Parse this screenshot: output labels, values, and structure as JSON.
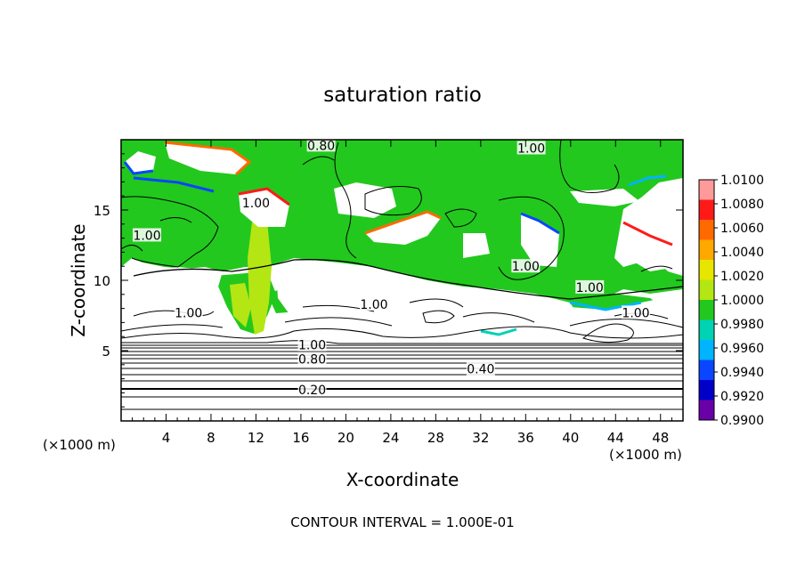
{
  "chart_data": {
    "type": "heatmap",
    "title": "saturation ratio",
    "xlabel": "X-coordinate",
    "ylabel": "Z-coordinate",
    "x_unit_label": "(×1000 m)",
    "x_unit_label_right": "(×1000 m)",
    "footer": "CONTOUR INTERVAL = 1.000E-01",
    "xlim": [
      0,
      50
    ],
    "ylim": [
      0,
      20
    ],
    "x_ticks": [
      4,
      8,
      12,
      16,
      20,
      24,
      28,
      32,
      36,
      40,
      44,
      48
    ],
    "y_ticks": [
      5,
      10,
      15
    ],
    "colorbar": {
      "min": 0.99,
      "max": 1.01,
      "labels": [
        "1.0100",
        "1.0080",
        "1.0060",
        "1.0040",
        "1.0020",
        "1.0000",
        "0.9980",
        "0.9960",
        "0.9940",
        "0.9920",
        "0.9900"
      ],
      "colors": [
        "#ff9a9a",
        "#ff1a1a",
        "#ff6a00",
        "#ffa800",
        "#e6e600",
        "#b4e614",
        "#22c81e",
        "#00d2b4",
        "#00b4ff",
        "#0a46ff",
        "#0000c8",
        "#6a00a8"
      ]
    },
    "contour_labels": [
      {
        "text": "0.80",
        "x": 17.8,
        "y": 19.6
      },
      {
        "text": "1.00",
        "x": 36.5,
        "y": 19.4
      },
      {
        "text": "1.00",
        "x": 12.0,
        "y": 15.5
      },
      {
        "text": "1.00",
        "x": 2.3,
        "y": 13.2
      },
      {
        "text": "1.00",
        "x": 36.0,
        "y": 11.0
      },
      {
        "text": "1.00",
        "x": 41.7,
        "y": 9.5
      },
      {
        "text": "1.00",
        "x": 22.5,
        "y": 8.3
      },
      {
        "text": "1.00",
        "x": 6.0,
        "y": 7.7
      },
      {
        "text": "1.00",
        "x": 45.8,
        "y": 7.7
      },
      {
        "text": "1.00",
        "x": 17.0,
        "y": 5.4
      },
      {
        "text": "0.80",
        "x": 17.0,
        "y": 4.4
      },
      {
        "text": "0.40",
        "x": 32.0,
        "y": 3.7
      },
      {
        "text": "0.20",
        "x": 17.0,
        "y": 2.2
      }
    ]
  }
}
